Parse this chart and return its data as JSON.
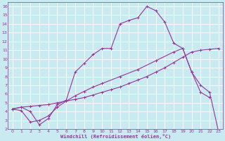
{
  "xlabel": "Windchill (Refroidissement éolien,°C)",
  "bg_color": "#c8eaf0",
  "line_color": "#993399",
  "grid_color": "#ffffff",
  "xlim": [
    -0.5,
    23.5
  ],
  "ylim": [
    2,
    16.5
  ],
  "xticks": [
    0,
    1,
    2,
    3,
    4,
    5,
    6,
    7,
    8,
    9,
    10,
    11,
    12,
    13,
    14,
    15,
    16,
    17,
    18,
    19,
    20,
    21,
    22,
    23
  ],
  "yticks": [
    2,
    3,
    4,
    5,
    6,
    7,
    8,
    9,
    10,
    11,
    12,
    13,
    14,
    15,
    16
  ],
  "line1_x": [
    0,
    1,
    2,
    3,
    4,
    5,
    6,
    7,
    8,
    9,
    10,
    11,
    12,
    13,
    14,
    15,
    16,
    17,
    18,
    19,
    20,
    21,
    22
  ],
  "line1_y": [
    4.3,
    4.5,
    4.0,
    2.5,
    3.2,
    4.8,
    5.3,
    8.5,
    9.5,
    10.5,
    11.2,
    11.2,
    14.0,
    14.4,
    14.7,
    16.0,
    15.5,
    14.2,
    11.8,
    11.2,
    8.5,
    6.2,
    5.6
  ],
  "line2_x": [
    0,
    1,
    2,
    3,
    4,
    5,
    6,
    7,
    8,
    9,
    10,
    12,
    14,
    16,
    18,
    19,
    20,
    21,
    22,
    23
  ],
  "line2_y": [
    4.3,
    4.1,
    2.8,
    3.0,
    3.5,
    4.5,
    5.2,
    5.8,
    6.3,
    6.8,
    7.2,
    8.0,
    8.8,
    9.8,
    10.8,
    11.2,
    8.5,
    7.0,
    6.2,
    1.7
  ],
  "line3_x": [
    0,
    1,
    2,
    3,
    4,
    5,
    6,
    7,
    8,
    9,
    10,
    11,
    12,
    13,
    14,
    15,
    16,
    17,
    18,
    19,
    20,
    21,
    22,
    23
  ],
  "line3_y": [
    4.3,
    4.5,
    4.6,
    4.7,
    4.8,
    5.0,
    5.2,
    5.4,
    5.6,
    5.9,
    6.2,
    6.5,
    6.8,
    7.2,
    7.6,
    8.0,
    8.5,
    9.0,
    9.6,
    10.2,
    10.8,
    11.0,
    11.1,
    11.2
  ]
}
